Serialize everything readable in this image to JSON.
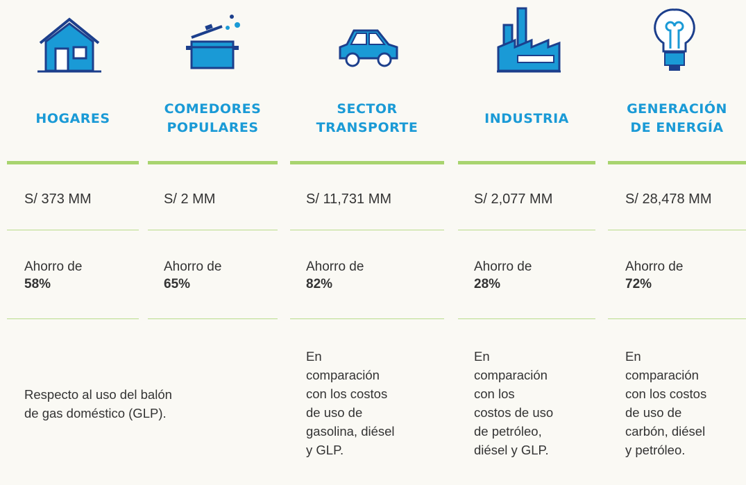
{
  "columns": [
    {
      "header": [
        "HOGARES"
      ],
      "amount": "S/ 373 MM",
      "saving_label": "Ahorro de",
      "saving": "58%"
    },
    {
      "header": [
        "COMEDORES",
        "POPULARES"
      ],
      "amount": "S/ 2 MM",
      "saving_label": "Ahorro de",
      "saving": "65%"
    },
    {
      "header": [
        "SECTOR",
        "TRANSPORTE"
      ],
      "amount": "S/ 11,731 MM",
      "saving_label": "Ahorro de",
      "saving": "82%",
      "note": [
        "En",
        "comparación",
        "con los costos",
        "de uso de",
        "gasolina, diésel",
        "y GLP."
      ]
    },
    {
      "header": [
        "INDUSTRIA"
      ],
      "amount": "S/ 2,077 MM",
      "saving_label": "Ahorro de",
      "saving": "28%",
      "note": [
        "En",
        "comparación",
        "con los",
        "costos de uso",
        "de petróleo,",
        "diésel y GLP."
      ]
    },
    {
      "header": [
        "GENERACIÓN",
        "DE ENERGÍA"
      ],
      "amount": "S/ 28,478 MM",
      "saving_label": "Ahorro de",
      "saving": "72%",
      "note": [
        "En",
        "comparación",
        "con los costos",
        "de uso de",
        "carbón, diésel",
        "y petróleo."
      ]
    }
  ],
  "shared_note": [
    "Respecto al uso del balón",
    "de gas doméstico (GLP)."
  ]
}
